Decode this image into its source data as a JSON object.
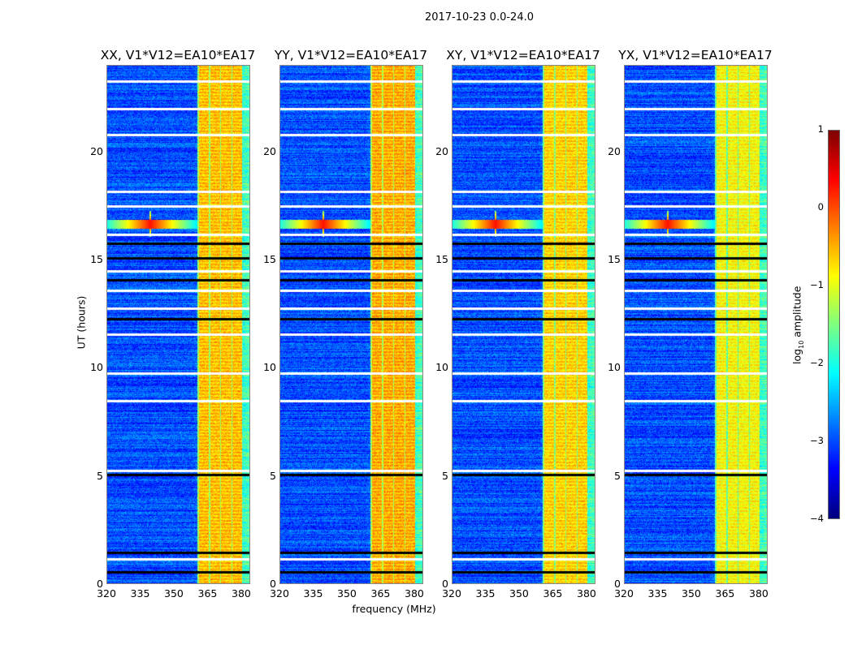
{
  "chart_data": {
    "type": "heatmap",
    "title": "2017-10-23 0.0-24.0",
    "xlabel": "frequency (MHz)",
    "ylabel": "UT (hours)",
    "xlim": [
      320,
      384
    ],
    "ylim": [
      0,
      24
    ],
    "xticks": [
      "320",
      "335",
      "350",
      "365",
      "380"
    ],
    "yticks": [
      "0",
      "5",
      "10",
      "15",
      "20"
    ],
    "panels": [
      {
        "title": "XX, V1*V12=EA10*EA17",
        "band_level": -0.6
      },
      {
        "title": "YY, V1*V12=EA10*EA17",
        "band_level": -0.5
      },
      {
        "title": "XY, V1*V12=EA10*EA17",
        "band_level": -0.7
      },
      {
        "title": "YX, V1*V12=EA10*EA17",
        "band_level": -0.9
      }
    ],
    "signal_band_mhz": [
      360,
      380
    ],
    "background_level": -3.0,
    "rfi_spike": {
      "freq_mhz": 339,
      "ut_hours": 16.7,
      "level": 0.3
    },
    "flagged_ut_hours": [
      0.6,
      1.2,
      1.5,
      5.1,
      5.3,
      8.5,
      9.8,
      11.6,
      12.3,
      12.8,
      13.6,
      14.1,
      14.5,
      15.1,
      15.8,
      16.2,
      17.5,
      18.2,
      20.8,
      22.0,
      23.3
    ],
    "colorbar": {
      "label_main": "log",
      "label_sub": "10",
      "label_tail": " amplitude",
      "range": [
        -4,
        1
      ],
      "ticks": [
        "1",
        "0",
        "−1",
        "−2",
        "−3",
        "−4"
      ],
      "colormap": "jet"
    }
  }
}
